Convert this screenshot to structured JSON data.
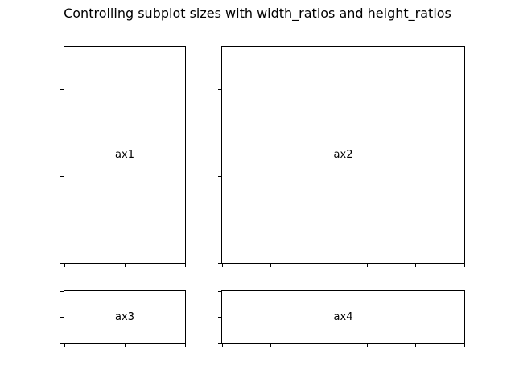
{
  "figure": {
    "title": "Controlling subplot sizes with width_ratios and height_ratios",
    "background_color": "#ffffff",
    "axes_line_color": "#000000",
    "text_color": "#000000",
    "gridspec": {
      "rows": 2,
      "cols": 2,
      "width_ratios": [
        1,
        2
      ],
      "height_ratios": [
        4,
        1
      ]
    }
  },
  "chart_data": [
    {
      "type": "line",
      "series": [],
      "annotation": "ax1",
      "row": 0,
      "col": 0,
      "xlim": [
        0,
        1
      ],
      "ylim": [
        0,
        1
      ],
      "x_tick_count": 3,
      "y_tick_count": 6,
      "tick_labels_visible": false,
      "grid": false,
      "legend": false
    },
    {
      "type": "line",
      "series": [],
      "annotation": "ax2",
      "row": 0,
      "col": 1,
      "xlim": [
        0,
        1
      ],
      "ylim": [
        0,
        1
      ],
      "x_tick_count": 6,
      "y_tick_count": 6,
      "tick_labels_visible": false,
      "grid": false,
      "legend": false
    },
    {
      "type": "line",
      "series": [],
      "annotation": "ax3",
      "row": 1,
      "col": 0,
      "xlim": [
        0,
        1
      ],
      "ylim": [
        0,
        1
      ],
      "x_tick_count": 3,
      "y_tick_count": 3,
      "tick_labels_visible": false,
      "grid": false,
      "legend": false
    },
    {
      "type": "line",
      "series": [],
      "annotation": "ax4",
      "row": 1,
      "col": 1,
      "xlim": [
        0,
        1
      ],
      "ylim": [
        0,
        1
      ],
      "x_tick_count": 6,
      "y_tick_count": 3,
      "tick_labels_visible": false,
      "grid": false,
      "legend": false
    }
  ]
}
